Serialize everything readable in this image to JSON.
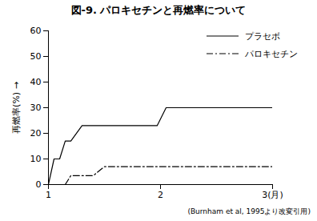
{
  "chart_data": {
    "type": "line",
    "title": "図-9. パロキセチンと再燃率について",
    "y_label": "再燃率(%)",
    "caption": "(Burnham et al, 1995より改変引用)",
    "xlim": [
      1,
      3
    ],
    "xticks": [
      1,
      2,
      {
        "value": 3,
        "label": "3(月)"
      }
    ],
    "ylim": [
      0,
      60
    ],
    "yticks": [
      0,
      10,
      20,
      30,
      40,
      50,
      60
    ],
    "grid": false,
    "legend": "top-right",
    "series": [
      {
        "name": "プラセボ",
        "color": "#000000",
        "line_style": "solid",
        "x": [
          1,
          1.05,
          1.1,
          1.15,
          1.2,
          1.3,
          1.97,
          2.05,
          3.0
        ],
        "values": [
          0,
          10,
          10,
          17,
          17,
          23,
          23,
          30,
          30
        ]
      },
      {
        "name": "パロキセチン",
        "color": "#000000",
        "line_style": "dashdot",
        "x": [
          1.15,
          1.2,
          1.4,
          1.5,
          3.0
        ],
        "values": [
          0,
          3.5,
          3.5,
          7,
          7
        ]
      }
    ]
  }
}
